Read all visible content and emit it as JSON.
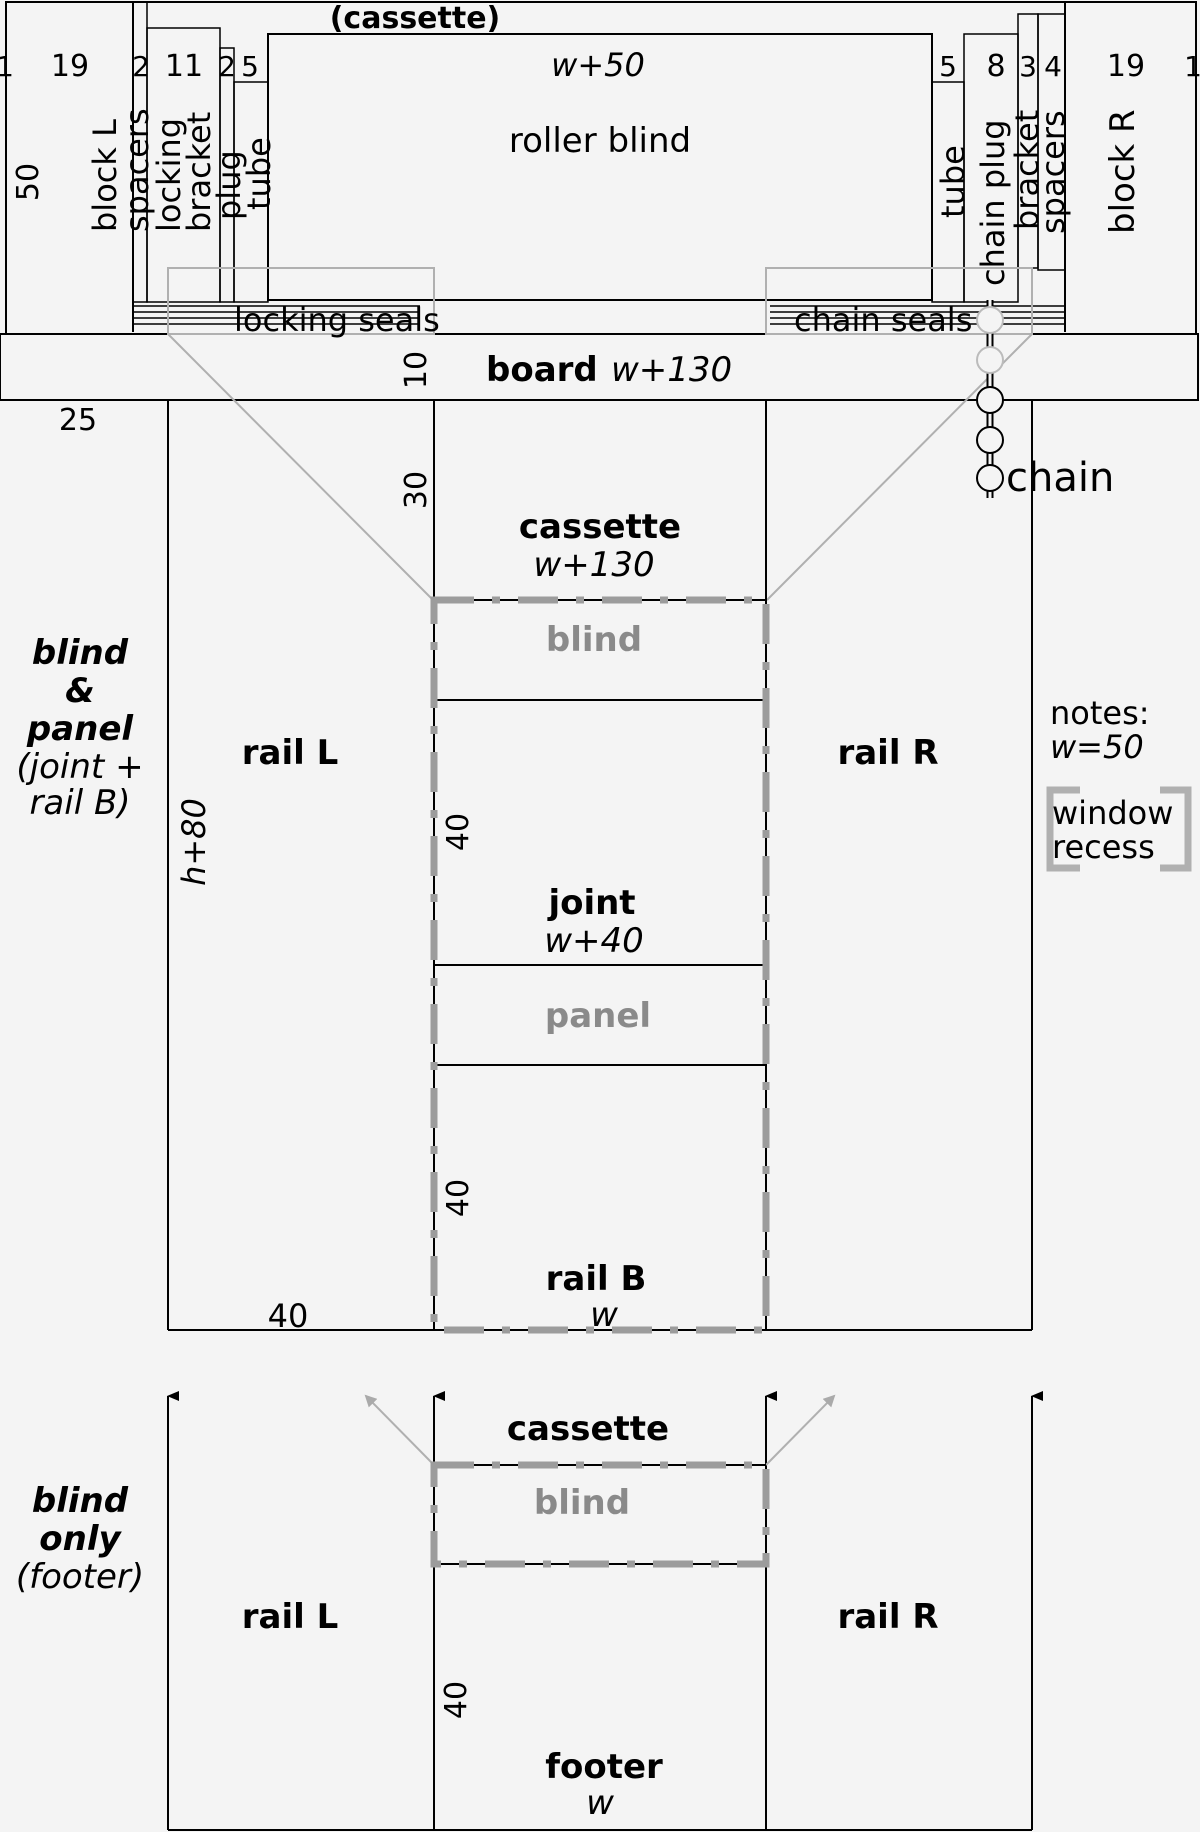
{
  "top": {
    "cassette_label": "(cassette)",
    "left_dims": [
      "1",
      "19",
      "2",
      "11",
      "2",
      "5"
    ],
    "right_dims": [
      "5",
      "8",
      "3",
      "4",
      "19",
      "1"
    ],
    "height_dim": "50",
    "center_dim": "w+50",
    "roller_blind": "roller blind",
    "left_labels": [
      "block L",
      "spacers",
      "locking",
      "bracket",
      "plug",
      "tube"
    ],
    "right_labels": [
      "tube",
      "chain plug",
      "bracket",
      "spacers",
      "block R"
    ],
    "locking_seals": "locking seals",
    "chain_seals": "chain seals",
    "board": "board",
    "board_dim": "w+130",
    "dim_10": "10",
    "dim_25": "25",
    "dim_30": "30",
    "chain": "chain"
  },
  "main": {
    "cassette": "cassette",
    "cassette_dim": "w+130",
    "blind": "blind",
    "rail_l": "rail L",
    "rail_r": "rail R",
    "side_title": [
      "blind",
      "&",
      "panel",
      "(joint +",
      "rail B)"
    ],
    "h_dim": "h+80",
    "dim_40a": "40",
    "joint": "joint",
    "joint_dim": "w+40",
    "panel": "panel",
    "dim_40b": "40",
    "rail_b": "rail B",
    "rail_b_dim": "w",
    "dim_40c": "40",
    "notes": [
      "notes:",
      "w=50"
    ],
    "window_recess": [
      "window",
      "recess"
    ]
  },
  "footer": {
    "cassette": "cassette",
    "blind": "blind",
    "side_title": [
      "blind",
      "only",
      "(footer)"
    ],
    "rail_l": "rail L",
    "rail_r": "rail R",
    "dim_40": "40",
    "footer": "footer",
    "footer_dim": "w"
  }
}
